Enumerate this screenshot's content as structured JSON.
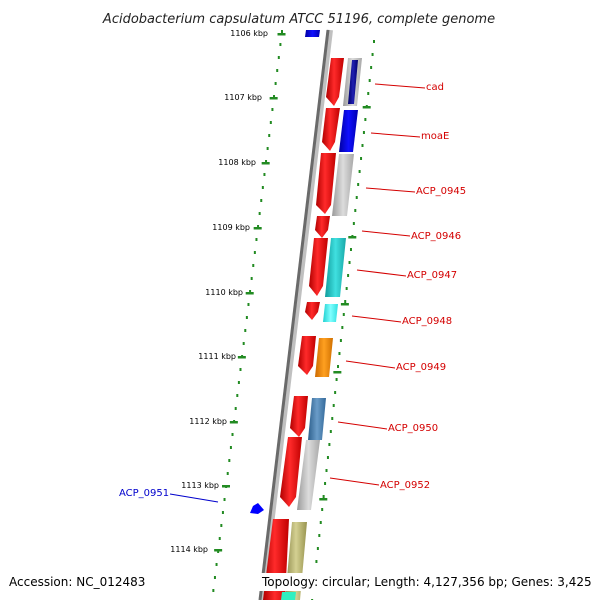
{
  "title": "Acidobacterium capsulatum ATCC 51196, complete genome",
  "ticks": [
    "1106 kbp",
    "1107 kbp",
    "1108 kbp",
    "1109 kbp",
    "1110 kbp",
    "1111 kbp",
    "1112 kbp",
    "1113 kbp",
    "1114 kbp"
  ],
  "gene_labels": [
    "cad",
    "moaE",
    "ACP_0945",
    "ACP_0946",
    "ACP_0947",
    "ACP_0948",
    "ACP_0949",
    "ACP_0950",
    "ACP_0952"
  ],
  "blue_gene_label": "ACP_0951",
  "footer": {
    "accession": "Accession: NC_012483",
    "topology": "Topology: circular; Length: 4,127,356 bp; Genes: 3,425"
  },
  "colors": {
    "cds_red": "#ff0000",
    "label_red": "#d40000",
    "label_blue": "#0000cc",
    "backbone": "#808080",
    "tick_green": "#228b22",
    "gene_blue": "#0000ff",
    "gene_gray": "#bdbdbd",
    "gene_cyan": "#20c0c0",
    "gene_orange": "#ff8c00",
    "gene_steel": "#4682b4",
    "gene_khaki": "#b5b06a"
  }
}
